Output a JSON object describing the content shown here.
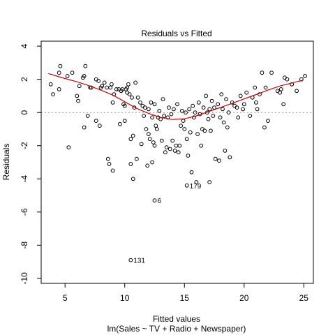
{
  "chart_data": {
    "type": "scatter",
    "title": "Residuals vs Fitted",
    "xlabel": "Fitted values",
    "subtitle": "lm(Sales ~ TV + Radio + Newspaper)",
    "ylabel": "Residuals",
    "xlim": [
      3,
      25.8
    ],
    "ylim": [
      -10.3,
      4.3
    ],
    "xticks": [
      5,
      10,
      15,
      20,
      25
    ],
    "yticks": [
      -10,
      -8,
      -6,
      -4,
      -2,
      0,
      2,
      4
    ],
    "reference_line": 0,
    "smoother_color": "#cc0000",
    "reference_color": "#999999",
    "smoother": [
      [
        3.6,
        2.35
      ],
      [
        5,
        2.05
      ],
      [
        6,
        1.85
      ],
      [
        7,
        1.62
      ],
      [
        8,
        1.35
      ],
      [
        9,
        1.05
      ],
      [
        10,
        0.65
      ],
      [
        11,
        0.25
      ],
      [
        12,
        -0.05
      ],
      [
        13,
        -0.3
      ],
      [
        14,
        -0.42
      ],
      [
        15,
        -0.38
      ],
      [
        16,
        -0.2
      ],
      [
        17,
        0.05
      ],
      [
        18,
        0.3
      ],
      [
        19,
        0.55
      ],
      [
        20,
        0.82
      ],
      [
        21,
        1.08
      ],
      [
        22,
        1.35
      ],
      [
        23,
        1.6
      ],
      [
        24,
        1.78
      ],
      [
        24.9,
        1.95
      ]
    ],
    "points": [
      [
        3.8,
        1.7
      ],
      [
        4.0,
        1.1
      ],
      [
        4.5,
        1.4
      ],
      [
        4.5,
        2.4
      ],
      [
        4.6,
        2.8
      ],
      [
        5.2,
        2.2
      ],
      [
        5.3,
        -2.1
      ],
      [
        5.6,
        2.4
      ],
      [
        6.0,
        1.0
      ],
      [
        6.1,
        0.7
      ],
      [
        6.2,
        1.6
      ],
      [
        6.5,
        2.1
      ],
      [
        6.6,
        -0.9
      ],
      [
        6.6,
        2.2
      ],
      [
        6.7,
        2.8
      ],
      [
        6.9,
        -0.2
      ],
      [
        7.1,
        1.5
      ],
      [
        7.2,
        1.5
      ],
      [
        7.6,
        2.0
      ],
      [
        7.6,
        -0.5
      ],
      [
        7.8,
        1.9
      ],
      [
        7.9,
        -0.8
      ],
      [
        8.0,
        1.5
      ],
      [
        8.1,
        1.6
      ],
      [
        8.3,
        1.8
      ],
      [
        8.5,
        1.5
      ],
      [
        8.6,
        -2.8
      ],
      [
        8.7,
        -3.1
      ],
      [
        8.8,
        1.5
      ],
      [
        8.9,
        1.7
      ],
      [
        9.0,
        -3.5
      ],
      [
        9.0,
        0.6
      ],
      [
        9.1,
        1.1
      ],
      [
        9.3,
        1.4
      ],
      [
        9.5,
        1.4
      ],
      [
        9.6,
        -0.7
      ],
      [
        9.7,
        1.3
      ],
      [
        9.8,
        1.4
      ],
      [
        9.9,
        0.5
      ],
      [
        10.0,
        -0.5
      ],
      [
        10.0,
        0.4
      ],
      [
        10.1,
        1.4
      ],
      [
        10.2,
        1.5
      ],
      [
        10.2,
        1.2
      ],
      [
        10.3,
        1.7
      ],
      [
        10.4,
        1.1
      ],
      [
        10.5,
        -1.6
      ],
      [
        10.5,
        -3.1
      ],
      [
        10.6,
        0.9
      ],
      [
        10.7,
        -1.4
      ],
      [
        10.7,
        -4.0
      ],
      [
        10.8,
        0.3
      ],
      [
        10.9,
        1.8
      ],
      [
        11.0,
        -2.8
      ],
      [
        11.1,
        0.9
      ],
      [
        11.3,
        0.6
      ],
      [
        11.4,
        -1.9
      ],
      [
        11.5,
        0.4
      ],
      [
        11.6,
        -0.2
      ],
      [
        11.7,
        0.3
      ],
      [
        11.8,
        -1.0
      ],
      [
        11.9,
        -3.2
      ],
      [
        12.0,
        -1.3
      ],
      [
        12.0,
        0.2
      ],
      [
        12.1,
        -1.6
      ],
      [
        12.2,
        0.6
      ],
      [
        12.3,
        -0.3
      ],
      [
        12.3,
        -3.0
      ],
      [
        12.4,
        -1.8
      ],
      [
        12.5,
        -2.0
      ],
      [
        12.5,
        0.5
      ],
      [
        12.6,
        -0.8
      ],
      [
        12.7,
        -1.0
      ],
      [
        12.8,
        -0.3
      ],
      [
        12.9,
        0.1
      ],
      [
        13.0,
        -0.4
      ],
      [
        13.1,
        -1.7
      ],
      [
        13.2,
        0.8
      ],
      [
        13.3,
        -0.2
      ],
      [
        13.4,
        -2.4
      ],
      [
        13.5,
        -2.1
      ],
      [
        13.6,
        -0.3
      ],
      [
        13.7,
        0.3
      ],
      [
        13.8,
        -2.2
      ],
      [
        13.9,
        -0.1
      ],
      [
        14.0,
        -1.7
      ],
      [
        14.1,
        0.2
      ],
      [
        14.2,
        -2.3
      ],
      [
        14.3,
        -2.0
      ],
      [
        14.4,
        0.5
      ],
      [
        14.5,
        -2.4
      ],
      [
        14.6,
        -2.0
      ],
      [
        14.7,
        -0.8
      ],
      [
        14.8,
        0.1
      ],
      [
        14.9,
        -0.5
      ],
      [
        15.0,
        -1.0
      ],
      [
        15.1,
        0.0
      ],
      [
        15.2,
        -1.6
      ],
      [
        15.3,
        -2.6
      ],
      [
        15.4,
        0.2
      ],
      [
        15.5,
        -1.2
      ],
      [
        15.6,
        -3.6
      ],
      [
        15.7,
        0.4
      ],
      [
        15.8,
        -0.3
      ],
      [
        15.9,
        0.0
      ],
      [
        16.0,
        -4.2
      ],
      [
        16.1,
        -1.3
      ],
      [
        16.2,
        0.6
      ],
      [
        16.3,
        -0.1
      ],
      [
        16.4,
        -2.0
      ],
      [
        16.5,
        -1.0
      ],
      [
        16.6,
        0.3
      ],
      [
        16.7,
        -1.1
      ],
      [
        16.8,
        1.0
      ],
      [
        16.9,
        0.0
      ],
      [
        17.0,
        -0.4
      ],
      [
        17.1,
        0.2
      ],
      [
        17.2,
        -1.1
      ],
      [
        17.3,
        0.7
      ],
      [
        17.4,
        -0.2
      ],
      [
        17.5,
        0.3
      ],
      [
        17.6,
        -2.8
      ],
      [
        17.8,
        0.5
      ],
      [
        17.9,
        -2.9
      ],
      [
        18.0,
        -0.3
      ],
      [
        18.1,
        1.1
      ],
      [
        18.2,
        0.2
      ],
      [
        18.3,
        -0.6
      ],
      [
        18.4,
        -2.3
      ],
      [
        18.5,
        0.8
      ],
      [
        18.6,
        -0.9
      ],
      [
        18.7,
        0.0
      ],
      [
        18.8,
        -2.7
      ],
      [
        19.0,
        0.6
      ],
      [
        19.2,
        0.4
      ],
      [
        19.4,
        0.3
      ],
      [
        19.5,
        -0.3
      ],
      [
        19.7,
        1.0
      ],
      [
        19.9,
        0.2
      ],
      [
        20.0,
        0.5
      ],
      [
        20.2,
        1.2
      ],
      [
        20.5,
        -0.2
      ],
      [
        20.7,
        0.9
      ],
      [
        20.9,
        1.5
      ],
      [
        21.0,
        0.6
      ],
      [
        21.1,
        0.2
      ],
      [
        21.3,
        1.1
      ],
      [
        21.5,
        2.4
      ],
      [
        21.7,
        -0.9
      ],
      [
        21.8,
        1.5
      ],
      [
        22.0,
        -0.5
      ],
      [
        22.3,
        2.4
      ],
      [
        22.8,
        1.3
      ],
      [
        23.0,
        1.2
      ],
      [
        23.1,
        1.4
      ],
      [
        23.3,
        0.5
      ],
      [
        23.4,
        2.1
      ],
      [
        23.6,
        2.0
      ],
      [
        24.0,
        1.7
      ],
      [
        24.4,
        1.3
      ],
      [
        24.8,
        2.0
      ],
      [
        25.1,
        2.2
      ],
      [
        15.2,
        -4.4
      ],
      [
        17.1,
        -4.2
      ],
      [
        12.5,
        -5.3
      ],
      [
        10.5,
        -8.9
      ]
    ],
    "labeled_points": [
      {
        "label": "179",
        "x": 15.2,
        "y": -4.4
      },
      {
        "label": "6",
        "x": 12.5,
        "y": -5.3
      },
      {
        "label": "131",
        "x": 10.5,
        "y": -8.9
      }
    ]
  }
}
